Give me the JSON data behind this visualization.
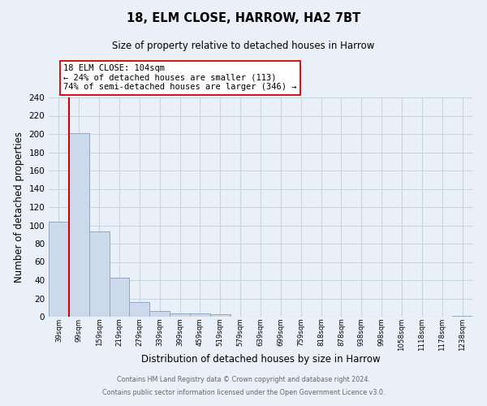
{
  "title": "18, ELM CLOSE, HARROW, HA2 7BT",
  "subtitle": "Size of property relative to detached houses in Harrow",
  "xlabel": "Distribution of detached houses by size in Harrow",
  "ylabel": "Number of detached properties",
  "bin_labels": [
    "39sqm",
    "99sqm",
    "159sqm",
    "219sqm",
    "279sqm",
    "339sqm",
    "399sqm",
    "459sqm",
    "519sqm",
    "579sqm",
    "639sqm",
    "699sqm",
    "759sqm",
    "818sqm",
    "878sqm",
    "938sqm",
    "998sqm",
    "1058sqm",
    "1118sqm",
    "1178sqm",
    "1238sqm"
  ],
  "bar_heights": [
    104,
    201,
    93,
    43,
    16,
    6,
    4,
    4,
    3,
    0,
    0,
    0,
    0,
    0,
    0,
    0,
    0,
    0,
    0,
    0,
    1
  ],
  "bar_color": "#ccd9ea",
  "bar_edge_color": "#8aaac8",
  "red_line_bin_index": 1,
  "red_line_color": "#cc0000",
  "annotation_line1": "18 ELM CLOSE: 104sqm",
  "annotation_line2": "← 24% of detached houses are smaller (113)",
  "annotation_line3": "74% of semi-detached houses are larger (346) →",
  "annotation_box_facecolor": "#ffffff",
  "annotation_box_edgecolor": "#cc0000",
  "ylim": [
    0,
    240
  ],
  "yticks": [
    0,
    20,
    40,
    60,
    80,
    100,
    120,
    140,
    160,
    180,
    200,
    220,
    240
  ],
  "grid_color": "#c8d4e4",
  "background_color": "#eaf0f8",
  "footer_line1": "Contains HM Land Registry data © Crown copyright and database right 2024.",
  "footer_line2": "Contains public sector information licensed under the Open Government Licence v3.0."
}
